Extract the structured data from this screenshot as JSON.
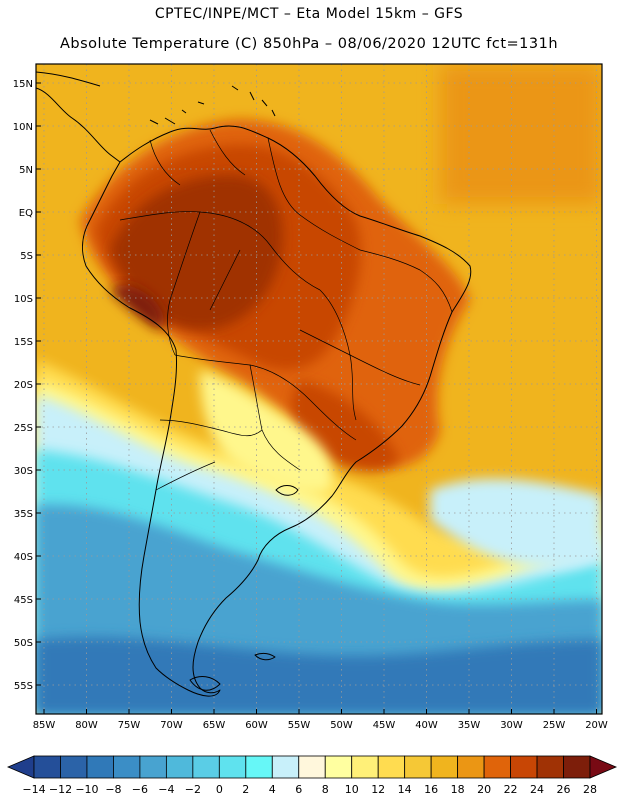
{
  "header": {
    "line1": "CPTEC/INPE/MCT –  Eta Model 15km – GFS",
    "line2": "Absolute Temperature (C) 850hPa – 08/06/2020 12UTC fct=131h"
  },
  "map": {
    "region": "South America",
    "lat_labels": [
      "15N",
      "10N",
      "5N",
      "EQ",
      "5S",
      "10S",
      "15S",
      "20S",
      "25S",
      "30S",
      "35S",
      "40S",
      "45S",
      "50S",
      "55S"
    ],
    "lon_labels": [
      "85W",
      "80W",
      "75W",
      "70W",
      "65W",
      "60W",
      "55W",
      "50W",
      "45W",
      "40W",
      "35W",
      "30W",
      "25W",
      "20W"
    ]
  },
  "colorbar": {
    "labels": [
      "-14",
      "-12",
      "-10",
      "-8",
      "-6",
      "-4",
      "-2",
      "0",
      "2",
      "4",
      "6",
      "8",
      "10",
      "12",
      "14",
      "16",
      "18",
      "20",
      "22",
      "24",
      "26",
      "28"
    ],
    "colors": [
      "#1f3e8c",
      "#244f99",
      "#2b63a8",
      "#3079b8",
      "#3b8ec6",
      "#48a3d0",
      "#4fb9db",
      "#5acde6",
      "#5fe2ee",
      "#66f7f7",
      "#c8f0fa",
      "#fff7dc",
      "#ffffa0",
      "#fff078",
      "#ffdc50",
      "#f5c836",
      "#f0b41e",
      "#eb9614",
      "#e0640a",
      "#c84605",
      "#a03205",
      "#7d1e0a",
      "#780a14"
    ]
  },
  "colors": {
    "land_outline": "#000000",
    "grid": "#9a9a9a"
  }
}
